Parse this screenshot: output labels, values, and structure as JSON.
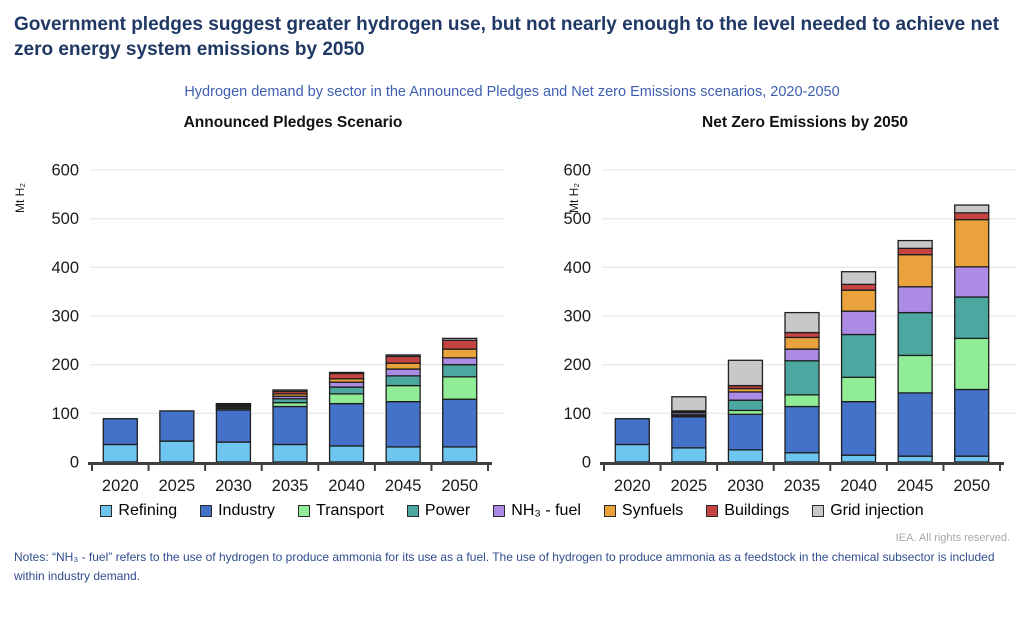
{
  "header": {
    "title": "Government pledges suggest greater hydrogen use, but not nearly enough to the level needed to achieve net zero energy system emissions by 2050",
    "subtitle": "Hydrogen demand by sector in the Announced Pledges and Net zero Emissions scenarios, 2020-2050"
  },
  "chart_data": [
    {
      "type": "bar",
      "stacked": true,
      "title": "Announced Pledges Scenario",
      "ylabel": "Mt H₂",
      "ylim": [
        0,
        600
      ],
      "yticks": [
        0,
        100,
        200,
        300,
        400,
        500,
        600
      ],
      "grid": true,
      "legend_position": "bottom-shared",
      "categories": [
        "2020",
        "2025",
        "2030",
        "2035",
        "2040",
        "2045",
        "2050"
      ],
      "series": [
        {
          "name": "Refining",
          "color": "#6EC6F0",
          "values": [
            36,
            43,
            41,
            36,
            33,
            31,
            31
          ]
        },
        {
          "name": "Industry",
          "color": "#4472C8",
          "values": [
            53,
            62,
            66,
            78,
            87,
            93,
            98
          ]
        },
        {
          "name": "Transport",
          "color": "#90EC96",
          "values": [
            0,
            0,
            3,
            8,
            20,
            33,
            46
          ]
        },
        {
          "name": "Power",
          "color": "#4BA79F",
          "values": [
            0,
            0,
            3,
            8,
            14,
            20,
            25
          ]
        },
        {
          "name": "NH₃ - fuel",
          "color": "#AC8BE4",
          "values": [
            0,
            0,
            2,
            5,
            10,
            14,
            14
          ]
        },
        {
          "name": "Synfuels",
          "color": "#E9A23C",
          "values": [
            0,
            0,
            2,
            5,
            7,
            12,
            18
          ]
        },
        {
          "name": "Buildings",
          "color": "#C54441",
          "values": [
            0,
            0,
            2,
            5,
            11,
            14,
            18
          ]
        },
        {
          "name": "Grid injection",
          "color": "#C8C8C8",
          "values": [
            0,
            0,
            1,
            3,
            2,
            3,
            4
          ]
        }
      ]
    },
    {
      "type": "bar",
      "stacked": true,
      "title": "Net Zero Emissions by 2050",
      "ylabel": "Mt H₂",
      "ylim": [
        0,
        600
      ],
      "yticks": [
        0,
        100,
        200,
        300,
        400,
        500,
        600
      ],
      "grid": true,
      "legend_position": "bottom-shared",
      "categories": [
        "2020",
        "2025",
        "2030",
        "2035",
        "2040",
        "2045",
        "2050"
      ],
      "series": [
        {
          "name": "Refining",
          "color": "#6EC6F0",
          "values": [
            36,
            29,
            25,
            19,
            14,
            12,
            12
          ]
        },
        {
          "name": "Industry",
          "color": "#4472C8",
          "values": [
            53,
            64,
            73,
            95,
            110,
            130,
            137
          ]
        },
        {
          "name": "Transport",
          "color": "#90EC96",
          "values": [
            0,
            2,
            8,
            24,
            50,
            77,
            105
          ]
        },
        {
          "name": "Power",
          "color": "#4BA79F",
          "values": [
            0,
            2,
            21,
            70,
            88,
            88,
            85
          ]
        },
        {
          "name": "NH₃ - fuel",
          "color": "#AC8BE4",
          "values": [
            0,
            4,
            17,
            24,
            48,
            53,
            62
          ]
        },
        {
          "name": "Synfuels",
          "color": "#E9A23C",
          "values": [
            0,
            2,
            7,
            24,
            43,
            66,
            97
          ]
        },
        {
          "name": "Buildings",
          "color": "#C54441",
          "values": [
            0,
            2,
            6,
            10,
            12,
            13,
            14
          ]
        },
        {
          "name": "Grid injection",
          "color": "#C8C8C8",
          "values": [
            0,
            29,
            52,
            41,
            26,
            16,
            16
          ]
        }
      ]
    }
  ],
  "legend": {
    "items": [
      {
        "label": "Refining",
        "color": "#6EC6F0"
      },
      {
        "label": "Industry",
        "color": "#4472C8"
      },
      {
        "label": "Transport",
        "color": "#90EC96"
      },
      {
        "label": "Power",
        "color": "#4BA79F"
      },
      {
        "label": "NH₃ - fuel",
        "color": "#AC8BE4"
      },
      {
        "label": "Synfuels",
        "color": "#E9A23C"
      },
      {
        "label": "Buildings",
        "color": "#C54441"
      },
      {
        "label": "Grid injection",
        "color": "#C8C8C8"
      }
    ]
  },
  "footer": {
    "credit": "IEA. All rights reserved.",
    "notes": "Notes: “NH₃ - fuel” refers to the use of hydrogen to produce ammonia for its use as a fuel. The use of hydrogen to produce ammonia as a feedstock in the chemical subsector is included within industry demand."
  }
}
